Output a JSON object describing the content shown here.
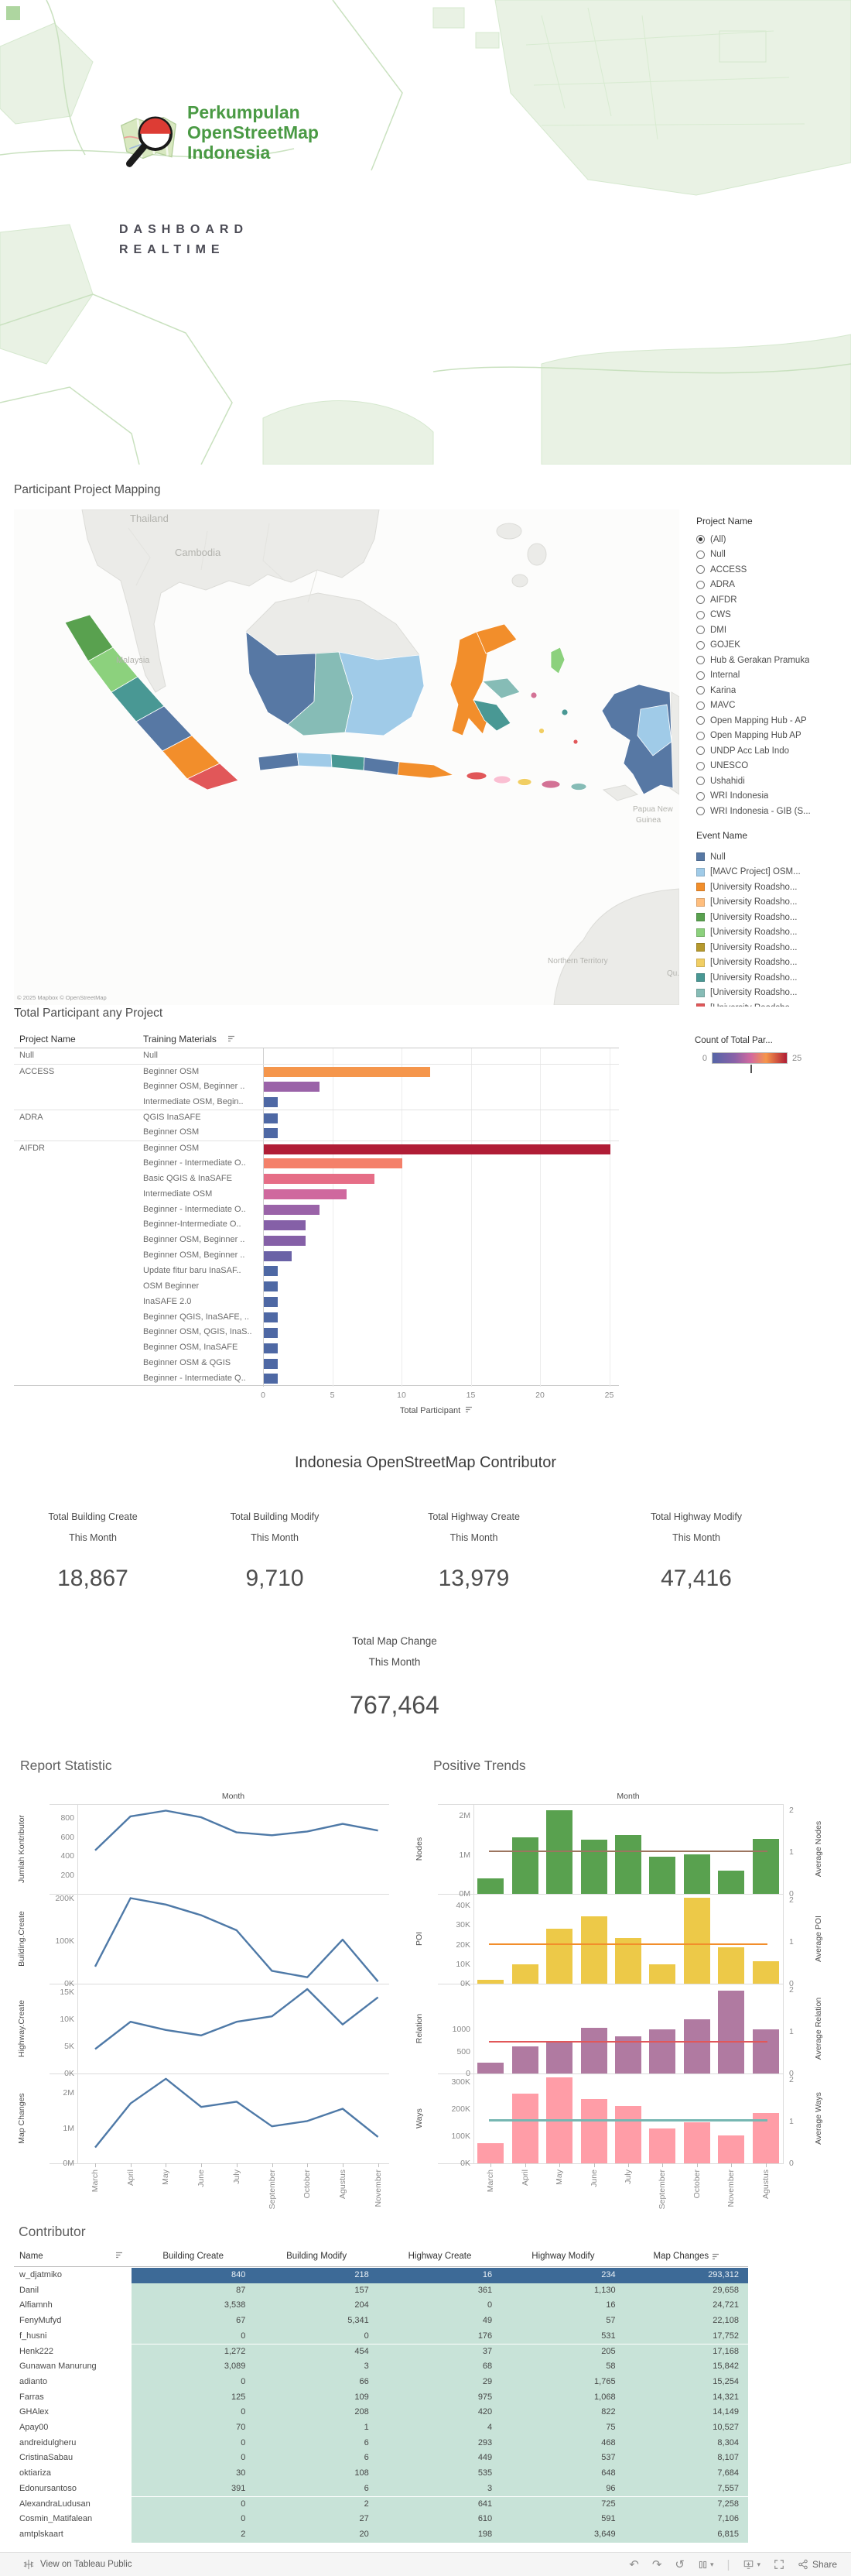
{
  "header": {
    "org_name_lines": [
      "Perkumpulan",
      "OpenStreetMap",
      "Indonesia"
    ],
    "title_line1": "DASHBOARD",
    "title_line2": "REALTIME",
    "brand_green": "#4a9a44"
  },
  "map_section": {
    "title": "Participant Project Mapping",
    "attribution": "© 2025 Mapbox  © OpenStreetMap",
    "map_labels": [
      "Thailand",
      "Cambodia",
      "Malaysia",
      "Papua New",
      "Guinea",
      "Northern Territory",
      "Qu.."
    ],
    "project_filter": {
      "title": "Project Name",
      "selected": "(All)",
      "options": [
        "(All)",
        "Null",
        "ACCESS",
        "ADRA",
        "AIFDR",
        "CWS",
        "DMI",
        "GOJEK",
        "Hub & Gerakan Pramuka",
        "Internal",
        "Karina",
        "MAVC",
        "Open Mapping Hub - AP",
        "Open Mapping Hub AP",
        "UNDP Acc Lab Indo",
        "UNESCO",
        "Ushahidi",
        "WRI Indonesia",
        "WRI Indonesia - GIB (S..."
      ]
    },
    "event_legend": {
      "title": "Event Name",
      "items": [
        {
          "label": "Null",
          "color": "#5778a4"
        },
        {
          "label": "[MAVC Project] OSM...",
          "color": "#a0cbe8"
        },
        {
          "label": "[University Roadsho...",
          "color": "#f28e2b"
        },
        {
          "label": "[University Roadsho...",
          "color": "#ffbe7d"
        },
        {
          "label": "[University Roadsho...",
          "color": "#59a14f"
        },
        {
          "label": "[University Roadsho...",
          "color": "#8cd17d"
        },
        {
          "label": "[University Roadsho...",
          "color": "#b6992d"
        },
        {
          "label": "[University Roadsho...",
          "color": "#f1ce63"
        },
        {
          "label": "[University Roadsho...",
          "color": "#499894"
        },
        {
          "label": "[University Roadsho...",
          "color": "#86bcb6"
        },
        {
          "label": "[University Roadsho...",
          "color": "#e15759"
        }
      ]
    },
    "color_legend": {
      "title": "Count of Total Par...",
      "min_label": "0",
      "max_label": "25",
      "gradient": [
        "#5565a7",
        "#8a62a8",
        "#d3699e",
        "#f5964c",
        "#b01d36"
      ]
    }
  },
  "kpi_section": {
    "title": "Indonesia OpenStreetMap Contributor",
    "kpis": [
      {
        "line1": "Total Building Create",
        "line2": "This Month",
        "value": "18,867"
      },
      {
        "line1": "Total Building Modify",
        "line2": "This Month",
        "value": "9,710"
      },
      {
        "line1": "Total Highway Create",
        "line2": "This Month",
        "value": "13,979"
      },
      {
        "line1": "Total Highway Modify",
        "line2": "This Month",
        "value": "47,416"
      }
    ],
    "total": {
      "line1": "Total Map Change",
      "line2": "This Month",
      "value": "767,464"
    }
  },
  "toolbar": {
    "view_on": "View on Tableau Public",
    "share_label": "Share"
  },
  "chart_data": [
    {
      "id": "participant",
      "type": "bar",
      "title": "Total Participant any Project",
      "col_headers": [
        "Project Name",
        "Training Materials"
      ],
      "xlabel": "Total Participant",
      "x_ticks": [
        0,
        5,
        10,
        15,
        20,
        25
      ],
      "xlim": [
        0,
        25
      ],
      "rows": [
        {
          "project": "Null",
          "material": "Null",
          "value": 0,
          "color": "#4e68a4"
        },
        {
          "project": "ACCESS",
          "material": "Beginner OSM",
          "value": 12,
          "color": "#f5964c"
        },
        {
          "project": "",
          "material": "Beginner OSM, Beginner ..",
          "value": 4,
          "color": "#9a63a8"
        },
        {
          "project": "",
          "material": "Intermediate OSM, Begin..",
          "value": 1,
          "color": "#4e68a4"
        },
        {
          "project": "ADRA",
          "material": "QGIS InaSAFE",
          "value": 1,
          "color": "#4e68a4"
        },
        {
          "project": "",
          "material": "Beginner OSM",
          "value": 1,
          "color": "#4e68a4"
        },
        {
          "project": "AIFDR",
          "material": "Beginner OSM",
          "value": 25,
          "color": "#b01d36"
        },
        {
          "project": "",
          "material": "Beginner - Intermediate O..",
          "value": 10,
          "color": "#f4806a"
        },
        {
          "project": "",
          "material": "Basic QGIS & InaSAFE",
          "value": 8,
          "color": "#e66e87"
        },
        {
          "project": "",
          "material": "Intermediate OSM",
          "value": 6,
          "color": "#cf689e"
        },
        {
          "project": "",
          "material": "Beginner - Intermediate O..",
          "value": 4,
          "color": "#9a63a8"
        },
        {
          "project": "",
          "material": "Beginner-Intermediate O..",
          "value": 3,
          "color": "#8560a7"
        },
        {
          "project": "",
          "material": "Beginner OSM, Beginner ..",
          "value": 3,
          "color": "#8560a7"
        },
        {
          "project": "",
          "material": "Beginner OSM, Beginner ..",
          "value": 2,
          "color": "#6a62a6"
        },
        {
          "project": "",
          "material": "Update fitur baru InaSAF..",
          "value": 1,
          "color": "#4e68a4"
        },
        {
          "project": "",
          "material": "OSM Beginner",
          "value": 1,
          "color": "#4e68a4"
        },
        {
          "project": "",
          "material": "InaSAFE 2.0",
          "value": 1,
          "color": "#4e68a4"
        },
        {
          "project": "",
          "material": "Beginner QGIS, InaSAFE, ..",
          "value": 1,
          "color": "#4e68a4"
        },
        {
          "project": "",
          "material": "Beginner OSM, QGIS, InaS..",
          "value": 1,
          "color": "#4e68a4"
        },
        {
          "project": "",
          "material": "Beginner OSM, InaSAFE",
          "value": 1,
          "color": "#4e68a4"
        },
        {
          "project": "",
          "material": "Beginner OSM & QGIS",
          "value": 1,
          "color": "#4e68a4"
        },
        {
          "project": "",
          "material": "Beginner - Intermediate Q..",
          "value": 1,
          "color": "#4e68a4"
        }
      ]
    },
    {
      "id": "report_statistic",
      "type": "line",
      "title": "Report Statistic",
      "xlabel": "Month",
      "x": [
        "March",
        "April",
        "May",
        "June",
        "July",
        "September",
        "October",
        "Agustus",
        "November"
      ],
      "line_color": "#4e79a7",
      "series": [
        {
          "name": "Jumlah Kontributor",
          "values": [
            460,
            820,
            880,
            810,
            650,
            620,
            660,
            740,
            670
          ],
          "ymax": 950,
          "ticks": [
            {
              "v": 200,
              "label": "200"
            },
            {
              "v": 400,
              "label": "400"
            },
            {
              "v": 600,
              "label": "600"
            },
            {
              "v": 800,
              "label": "800"
            }
          ]
        },
        {
          "name": "Building.Create",
          "values": [
            40000,
            200000,
            185000,
            160000,
            125000,
            30000,
            15000,
            103000,
            5000
          ],
          "ymax": 210000,
          "ticks": [
            {
              "v": 0,
              "label": "0K"
            },
            {
              "v": 100000,
              "label": "100K"
            },
            {
              "v": 200000,
              "label": "200K"
            }
          ]
        },
        {
          "name": "Highway.Create",
          "values": [
            4500,
            9500,
            8000,
            7000,
            9500,
            10500,
            15500,
            9000,
            14000
          ],
          "ymax": 16500,
          "ticks": [
            {
              "v": 0,
              "label": "0K"
            },
            {
              "v": 5000,
              "label": "5K"
            },
            {
              "v": 10000,
              "label": "10K"
            },
            {
              "v": 15000,
              "label": "15K"
            }
          ]
        },
        {
          "name": "Map Changes",
          "values": [
            450000,
            1700000,
            2400000,
            1600000,
            1750000,
            1050000,
            1200000,
            1550000,
            750000
          ],
          "ymax": 2550000,
          "ticks": [
            {
              "v": 0,
              "label": "0M"
            },
            {
              "v": 1000000,
              "label": "1M"
            },
            {
              "v": 2000000,
              "label": "2M"
            }
          ]
        }
      ]
    },
    {
      "id": "positive_trends",
      "type": "bar",
      "title": "Positive Trends",
      "xlabel": "Month",
      "x": [
        "March",
        "April",
        "May",
        "June",
        "July",
        "September",
        "October",
        "November",
        "Agustus"
      ],
      "right_axis_ticks": [
        "0",
        "1",
        "2"
      ],
      "series": [
        {
          "name": "Nodes",
          "right_name": "Average Nodes",
          "color": "#59a14f",
          "trend_color": "#9c755f",
          "trend": 1120000,
          "ymax": 2300000,
          "values": [
            400000,
            1450000,
            2150000,
            1380000,
            1500000,
            950000,
            1020000,
            600000,
            1400000
          ],
          "ticks": [
            {
              "v": 0,
              "label": "0M"
            },
            {
              "v": 1000000,
              "label": "1M"
            },
            {
              "v": 2000000,
              "label": "2M"
            }
          ]
        },
        {
          "name": "POI",
          "right_name": "Average POI",
          "color": "#edc948",
          "trend_color": "#f28e2b",
          "trend": 20800,
          "ymax": 46000,
          "values": [
            2000,
            9800,
            28000,
            34500,
            23500,
            9800,
            44000,
            18500,
            11500
          ],
          "ticks": [
            {
              "v": 0,
              "label": "0K"
            },
            {
              "v": 10000,
              "label": "10K"
            },
            {
              "v": 20000,
              "label": "20K"
            },
            {
              "v": 30000,
              "label": "30K"
            },
            {
              "v": 40000,
              "label": "40K"
            }
          ]
        },
        {
          "name": "Relation",
          "right_name": "Average Relation",
          "color": "#b07aa1",
          "trend_color": "#e15759",
          "trend": 750,
          "ymax": 2050,
          "values": [
            250,
            620,
            700,
            1050,
            850,
            1000,
            1230,
            1900,
            1000
          ],
          "ticks": [
            {
              "v": 0,
              "label": "0"
            },
            {
              "v": 500,
              "label": "500"
            },
            {
              "v": 1000,
              "label": "1000"
            }
          ]
        },
        {
          "name": "Ways",
          "right_name": "Average Ways",
          "color": "#ff9da7",
          "trend_color": "#76b7b2",
          "trend": 162000,
          "ymax": 330000,
          "values": [
            75000,
            255000,
            315000,
            235000,
            212000,
            128000,
            152000,
            103000,
            185000
          ],
          "ticks": [
            {
              "v": 0,
              "label": "0K"
            },
            {
              "v": 100000,
              "label": "100K"
            },
            {
              "v": 200000,
              "label": "200K"
            },
            {
              "v": 300000,
              "label": "300K"
            }
          ]
        }
      ]
    },
    {
      "id": "contributor",
      "type": "table",
      "title": "Contributor",
      "columns": [
        "Name",
        "Building Create",
        "Building Modify",
        "Highway Create",
        "Highway Modify",
        "Map Changes"
      ],
      "default_bg": "#c8e3d8",
      "default_fg": "#474747",
      "rows": [
        {
          "name": "w_djatmiko",
          "values": [
            "840",
            "218",
            "16",
            "234",
            "293,312"
          ],
          "bg": "#3d6a97",
          "fg": "#edf3f8"
        },
        {
          "name": "Danil",
          "values": [
            "87",
            "157",
            "361",
            "1,130",
            "29,658"
          ]
        },
        {
          "name": "Alfiamnh",
          "values": [
            "3,538",
            "204",
            "0",
            "16",
            "24,721"
          ]
        },
        {
          "name": "FenyMufyd",
          "values": [
            "67",
            "5,341",
            "49",
            "57",
            "22,108"
          ]
        },
        {
          "name": "f_husni",
          "values": [
            "0",
            "0",
            "176",
            "531",
            "17,752"
          ]
        },
        {
          "name": "Henk222",
          "values": [
            "1,272",
            "454",
            "37",
            "205",
            "17,168"
          ]
        },
        {
          "name": "Gunawan Manurung",
          "values": [
            "3,089",
            "3",
            "68",
            "58",
            "15,842"
          ]
        },
        {
          "name": "adianto",
          "values": [
            "0",
            "66",
            "29",
            "1,765",
            "15,254"
          ]
        },
        {
          "name": "Farras",
          "values": [
            "125",
            "109",
            "975",
            "1,068",
            "14,321"
          ]
        },
        {
          "name": "GHAlex",
          "values": [
            "0",
            "208",
            "420",
            "822",
            "14,149"
          ]
        },
        {
          "name": "Apay00",
          "values": [
            "70",
            "1",
            "4",
            "75",
            "10,527"
          ]
        },
        {
          "name": "andreidulgheru",
          "values": [
            "0",
            "6",
            "293",
            "468",
            "8,304"
          ]
        },
        {
          "name": "CristinaSabau",
          "values": [
            "0",
            "6",
            "449",
            "537",
            "8,107"
          ]
        },
        {
          "name": "oktiariza",
          "values": [
            "30",
            "108",
            "535",
            "648",
            "7,684"
          ]
        },
        {
          "name": "Edonursantoso",
          "values": [
            "391",
            "6",
            "3",
            "96",
            "7,557"
          ]
        },
        {
          "name": "AlexandraLudusan",
          "values": [
            "0",
            "2",
            "641",
            "725",
            "7,258"
          ]
        },
        {
          "name": "Cosmin_Matifalean",
          "values": [
            "0",
            "27",
            "610",
            "591",
            "7,106"
          ]
        },
        {
          "name": "amtplskaart",
          "values": [
            "2",
            "20",
            "198",
            "3,649",
            "6,815"
          ]
        }
      ]
    }
  ]
}
